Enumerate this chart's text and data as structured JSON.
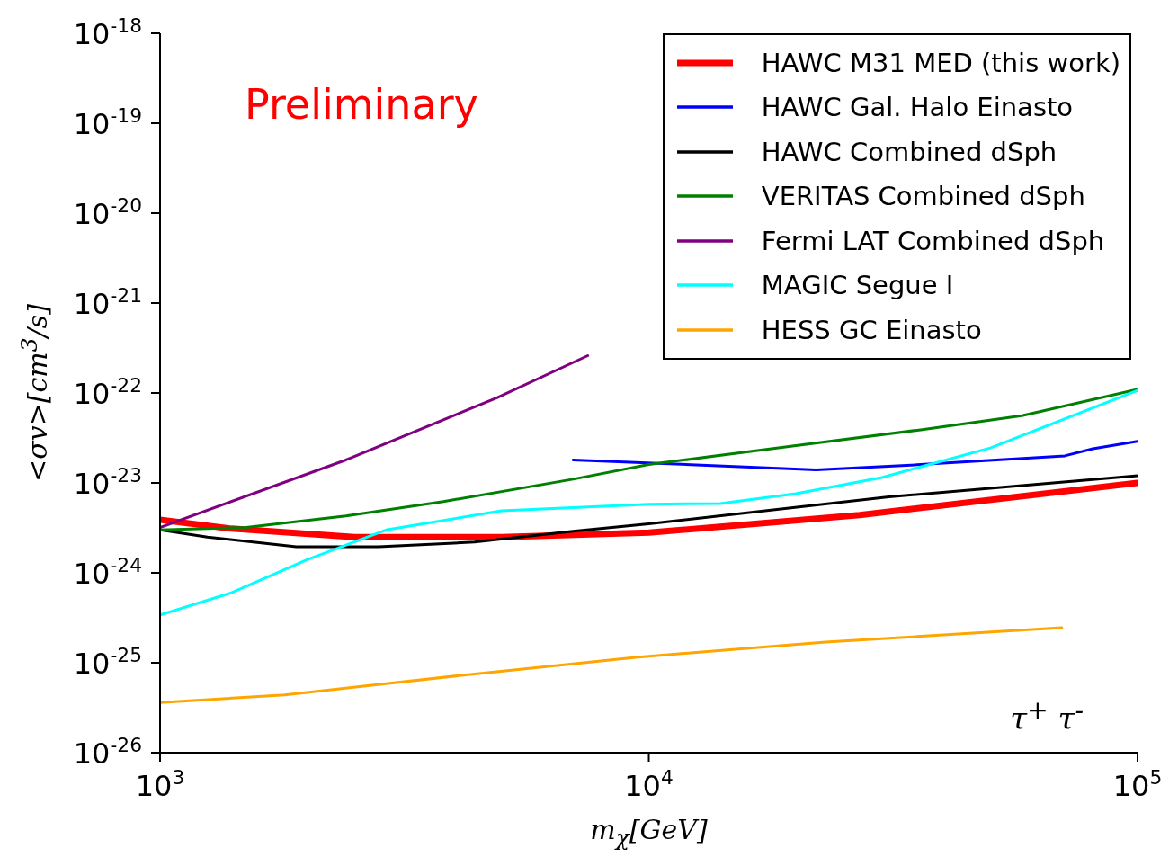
{
  "chart_data": {
    "type": "line",
    "xlabel": "m$_{χ}$[GeV]",
    "ylabel": "<σv>[cm$^{3}$/s]",
    "log": "xy",
    "legend": "top right",
    "line_style": "solid",
    "xlim": [
      1000,
      100000
    ],
    "xticks": [
      {
        "value": 1000,
        "label": "10$^{3}$"
      },
      {
        "value": 10000,
        "label": "10$^{4}$"
      },
      {
        "value": 100000,
        "label": "10$^{5}$"
      }
    ],
    "ylim": [
      1e-26,
      1e-18
    ],
    "yticks": [
      {
        "value": 1e-26,
        "label": "10$^{-26}$"
      },
      {
        "value": 1e-25,
        "label": "10$^{-25}$"
      },
      {
        "value": 1e-24,
        "label": "10$^{-24}$"
      },
      {
        "value": 1e-23,
        "label": "10$^{-23}$"
      },
      {
        "value": 1e-22,
        "label": "10$^{-22}$"
      },
      {
        "value": 1e-21,
        "label": "10$^{-21}$"
      },
      {
        "value": 1e-20,
        "label": "10$^{-20}$"
      },
      {
        "value": 1e-19,
        "label": "10$^{-19}$"
      },
      {
        "value": 1e-18,
        "label": "10$^{-18}$"
      }
    ],
    "annotations": [
      "Preliminary",
      "τ$^{+}$ τ$^{-}$"
    ],
    "series": [
      {
        "name": "HAWC M31 MED (this work)",
        "color": "#ff0000",
        "x": [
          1000,
          1400,
          2500,
          5000,
          10000,
          27000,
          100000
        ],
        "values": [
          3.9e-24,
          3.1e-24,
          2.5e-24,
          2.5e-24,
          2.8e-24,
          4.4e-24,
          1e-23
        ]
      },
      {
        "name": "HAWC Gal. Halo Einasto",
        "color": "#0000ff",
        "x": [
          7000,
          22000,
          36000,
          71000,
          81000,
          100000
        ],
        "values": [
          1.8e-23,
          1.4e-23,
          1.6e-23,
          2e-23,
          2.4e-23,
          2.9e-23
        ]
      },
      {
        "name": "HAWC Combined dSph",
        "color": "#000000",
        "x": [
          1000,
          1250,
          1900,
          2800,
          4400,
          7000,
          10000,
          31000,
          100000
        ],
        "values": [
          3e-24,
          2.5e-24,
          1.95e-24,
          1.95e-24,
          2.2e-24,
          2.9e-24,
          3.5e-24,
          7e-24,
          1.2e-23
        ]
      },
      {
        "name": "VERITAS Combined dSph",
        "color": "#008000",
        "x": [
          1000,
          1500,
          2400,
          3800,
          7000,
          10000,
          20000,
          36000,
          58000,
          100000
        ],
        "values": [
          3e-24,
          3.2e-24,
          4.3e-24,
          6.2e-24,
          1.1e-23,
          1.6e-23,
          2.6e-23,
          3.9e-23,
          5.6e-23,
          1.1e-22
        ]
      },
      {
        "name": "Fermi LAT Combined dSph",
        "color": "#800080",
        "x": [
          1000,
          2400,
          4900,
          7500
        ],
        "values": [
          3.2e-24,
          1.8e-23,
          8.9e-23,
          2.6e-22
        ]
      },
      {
        "name": "MAGIC Segue I",
        "color": "#00ffff",
        "x": [
          1000,
          1400,
          2000,
          2900,
          5000,
          10000,
          14000,
          20000,
          30000,
          50000,
          100000
        ],
        "values": [
          3.4e-25,
          6e-25,
          1.4e-24,
          3e-24,
          4.9e-24,
          5.8e-24,
          5.9e-24,
          7.6e-24,
          1.15e-23,
          2.45e-23,
          1.07e-22
        ]
      },
      {
        "name": "HESS GC Einasto",
        "color": "#ffa500",
        "x": [
          1000,
          1800,
          4100,
          9400,
          23000,
          70000
        ],
        "values": [
          3.6e-26,
          4.4e-26,
          7.2e-26,
          1.15e-25,
          1.7e-25,
          2.45e-25
        ]
      }
    ]
  }
}
